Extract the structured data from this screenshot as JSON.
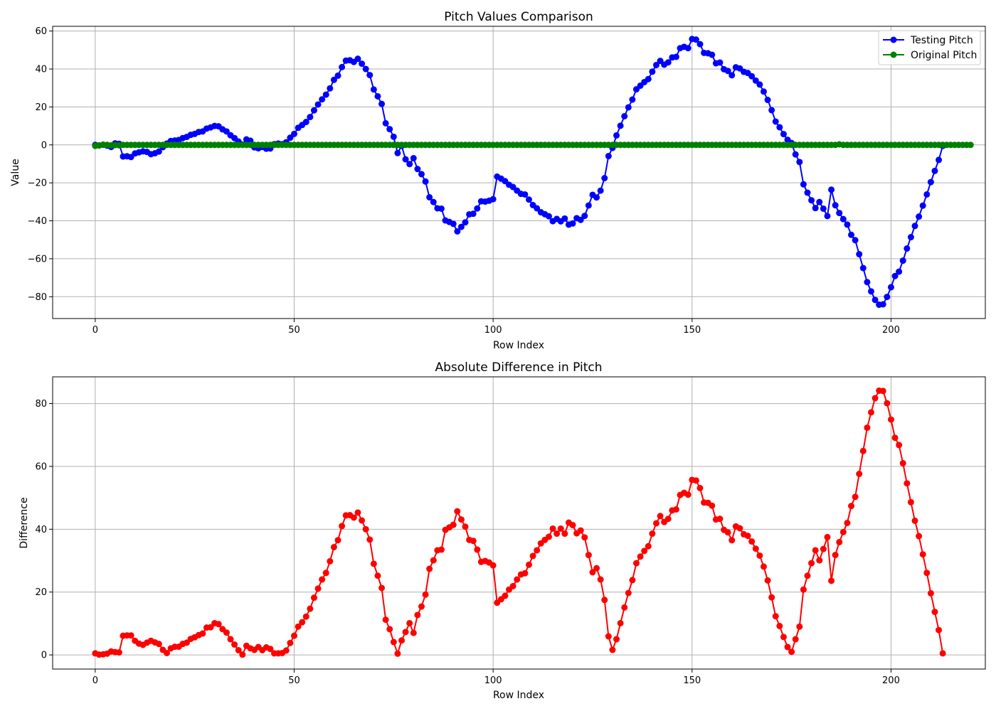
{
  "colors": {
    "testing": "#0000ff",
    "original": "#008000",
    "difference": "#ff0000",
    "grid": "#b0b0b0"
  },
  "chart_data": [
    {
      "type": "line",
      "title": "Pitch Values Comparison",
      "xlabel": "Row Index",
      "ylabel": "Value",
      "xlim": [
        -10.7,
        223.7
      ],
      "ylim": [
        -91.5,
        62.5
      ],
      "xticks": [
        0,
        50,
        100,
        150,
        200
      ],
      "yticks": [
        -80,
        -60,
        -40,
        -20,
        0,
        20,
        40,
        60
      ],
      "ytick_labels": [
        "−80",
        "−60",
        "−40",
        "−20",
        "0",
        "20",
        "40",
        "60"
      ],
      "grid": true,
      "legend": "top-right",
      "series": [
        {
          "name": "Testing Pitch",
          "color": "#0000ff",
          "marker": "circle",
          "values": [
            0.0,
            -0.3,
            0.1,
            -0.4,
            -1.1,
            0.8,
            0.6,
            -6.1,
            -6.0,
            -6.4,
            -4.5,
            -3.9,
            -3.4,
            -3.7,
            -4.9,
            -4.4,
            -3.5,
            -1.2,
            0.7,
            2.1,
            2.3,
            2.6,
            3.6,
            4.2,
            5.3,
            5.8,
            6.8,
            7.1,
            8.6,
            9.2,
            10.0,
            9.8,
            8.2,
            7.1,
            5.1,
            3.6,
            1.8,
            0.2,
            2.9,
            2.2,
            -1.3,
            -1.8,
            -1.1,
            -2.0,
            -1.9,
            0.4,
            0.7,
            0.4,
            1.4,
            3.8,
            5.8,
            9.0,
            10.5,
            12.1,
            14.7,
            18.2,
            21.3,
            24.0,
            26.5,
            29.8,
            34.3,
            36.5,
            41.0,
            44.4,
            44.6,
            43.7,
            45.4,
            42.8,
            40.0,
            36.8,
            29.2,
            25.6,
            21.6,
            11.4,
            8.3,
            4.3,
            -4.3,
            -0.5,
            -7.6,
            -10.1,
            -7.0,
            -12.7,
            -15.4,
            -19.3,
            -27.6,
            -30.1,
            -33.4,
            -33.6,
            -39.8,
            -40.6,
            -41.6,
            -45.6,
            -43.2,
            -40.8,
            -36.6,
            -36.3,
            -33.5,
            -29.7,
            -29.9,
            -29.4,
            -28.6,
            -16.7,
            -17.8,
            -19.1,
            -21.0,
            -22.2,
            -24.1,
            -25.8,
            -26.1,
            -28.8,
            -31.7,
            -33.4,
            -35.5,
            -36.5,
            -37.6,
            -40.2,
            -39.0,
            -40.3,
            -38.8,
            -42.0,
            -41.4,
            -38.6,
            -39.5,
            -37.4,
            -31.9,
            -26.3,
            -27.7,
            -24.1,
            -17.5,
            -5.9,
            -1.6,
            5.0,
            10.1,
            15.1,
            19.8,
            23.9,
            29.3,
            31.2,
            33.1,
            34.7,
            38.6,
            42.1,
            44.3,
            42.3,
            43.5,
            46.1,
            46.4,
            51.0,
            51.7,
            51.0,
            55.8,
            55.5,
            53.1,
            48.5,
            48.3,
            47.5,
            43.0,
            43.4,
            39.9,
            39.0,
            36.7,
            40.9,
            40.3,
            38.5,
            37.9,
            36.2,
            33.9,
            31.8,
            28.1,
            23.7,
            18.3,
            12.3,
            9.3,
            5.7,
            2.7,
            1.0,
            -5.0,
            -9.0,
            -20.8,
            -25.2,
            -29.2,
            -33.3,
            -30.1,
            -33.6,
            -37.5,
            -23.6,
            -31.8,
            -35.9,
            -39.1,
            -42.0,
            -47.4,
            -50.2,
            -57.6,
            -64.9,
            -72.3,
            -77.2,
            -81.7,
            -84.2,
            -84.0,
            -80.1,
            -75.0,
            -69.1,
            -66.8,
            -61.0,
            -54.6,
            -48.6,
            -42.7,
            -37.8,
            -32.0,
            -26.1,
            -19.6,
            -13.7,
            -7.9,
            -0.5
          ]
        },
        {
          "name": "Original Pitch",
          "color": "#008000",
          "marker": "circle",
          "values": [
            -0.5,
            -0.2,
            0.1,
            0.0,
            -0.2,
            -0.1,
            -0.2,
            0.0,
            0.0,
            0.0,
            0.0,
            0.0,
            0.0,
            0.0,
            0.0,
            0.0,
            0.0,
            0.0,
            0.0,
            0.0,
            0.0,
            0.0,
            0.0,
            0.0,
            0.0,
            0.0,
            0.0,
            0.0,
            0.0,
            0.0,
            0.0,
            0.0,
            0.0,
            0.0,
            0.0,
            0.0,
            0.0,
            0.0,
            0.0,
            0.0,
            0.0,
            0.0,
            0.0,
            0.0,
            0.0,
            0.0,
            0.0,
            0.0,
            0.0,
            0.0,
            0.0,
            0.0,
            0.0,
            0.0,
            0.0,
            0.0,
            0.0,
            0.0,
            0.0,
            0.0,
            0.0,
            0.0,
            0.0,
            0.0,
            0.0,
            0.0,
            0.0,
            0.0,
            0.0,
            0.0,
            0.0,
            0.0,
            0.0,
            0.0,
            0.0,
            0.0,
            0.0,
            0.0,
            0.0,
            0.0,
            0.0,
            0.0,
            0.0,
            0.0,
            0.0,
            0.0,
            0.0,
            0.0,
            0.0,
            0.0,
            0.0,
            0.0,
            0.0,
            0.0,
            0.0,
            0.0,
            0.0,
            0.0,
            0.0,
            0.0,
            0.0,
            0.0,
            0.0,
            0.0,
            0.0,
            0.0,
            0.0,
            0.0,
            0.0,
            0.0,
            0.0,
            0.0,
            0.0,
            0.0,
            0.0,
            0.0,
            0.0,
            0.0,
            0.0,
            0.0,
            0.0,
            0.0,
            0.0,
            0.0,
            0.0,
            0.0,
            0.0,
            0.0,
            0.0,
            0.0,
            0.0,
            0.0,
            0.0,
            0.0,
            0.0,
            0.0,
            0.0,
            0.0,
            0.0,
            0.0,
            0.0,
            0.0,
            0.0,
            0.0,
            0.0,
            0.0,
            0.0,
            0.0,
            0.0,
            0.0,
            0.0,
            0.0,
            0.0,
            0.0,
            0.0,
            0.0,
            0.0,
            0.0,
            0.0,
            0.0,
            0.0,
            0.0,
            0.0,
            0.0,
            0.0,
            0.0,
            0.0,
            0.0,
            0.0,
            0.0,
            0.0,
            0.0,
            0.0,
            0.0,
            0.0,
            0.0,
            0.0,
            0.0,
            0.0,
            0.0,
            0.0,
            0.0,
            0.0,
            0.0,
            0.0,
            0.0,
            0.0,
            0.3,
            0.0,
            0.0,
            0.0,
            0.0,
            0.0,
            0.0,
            0.0,
            0.0,
            0.0,
            0.0,
            0.0,
            0.0,
            0.0,
            0.0,
            0.0,
            0.0,
            0.0,
            0.0,
            0.0,
            0.0,
            0.0,
            0.0,
            0.0,
            0.0,
            0.0,
            0.0,
            0.0,
            0.0,
            0.0,
            0.0,
            0.0,
            0.0,
            0.0
          ]
        }
      ]
    },
    {
      "type": "line",
      "title": "Absolute Difference in Pitch",
      "xlabel": "Row Index",
      "ylabel": "Difference",
      "xlim": [
        -10.7,
        223.7
      ],
      "ylim": [
        -4.5,
        88.5
      ],
      "xticks": [
        0,
        50,
        100,
        150,
        200
      ],
      "yticks": [
        0,
        20,
        40,
        60,
        80
      ],
      "ytick_labels": [
        "0",
        "20",
        "40",
        "60",
        "80"
      ],
      "grid": true,
      "series": [
        {
          "color": "#ff0000",
          "marker": "circle",
          "values": [
            0.5,
            0.1,
            0.2,
            0.4,
            1.1,
            0.9,
            0.8,
            6.1,
            6.2,
            6.2,
            4.5,
            3.6,
            3.2,
            3.9,
            4.5,
            4.0,
            3.5,
            1.6,
            0.6,
            2.1,
            2.6,
            2.6,
            3.5,
            3.9,
            5.1,
            5.6,
            6.3,
            6.8,
            8.7,
            8.8,
            10.1,
            9.8,
            8.2,
            7.1,
            5.0,
            3.3,
            1.5,
            0.1,
            2.9,
            2.1,
            1.6,
            2.5,
            1.5,
            2.4,
            1.9,
            0.5,
            0.5,
            0.6,
            1.4,
            3.8,
            6.1,
            9.0,
            10.4,
            12.2,
            14.7,
            18.2,
            21.1,
            24.0,
            26.1,
            29.8,
            34.3,
            36.5,
            41.0,
            44.4,
            44.5,
            43.7,
            45.3,
            42.8,
            40.0,
            36.7,
            29.0,
            25.2,
            21.3,
            11.2,
            8.2,
            4.1,
            0.4,
            4.6,
            7.3,
            10.1,
            7.0,
            12.7,
            15.4,
            19.2,
            27.4,
            30.1,
            33.3,
            33.5,
            39.8,
            40.6,
            41.4,
            45.7,
            43.1,
            40.8,
            36.6,
            36.3,
            33.5,
            29.6,
            29.9,
            29.4,
            28.5,
            16.6,
            17.7,
            18.8,
            20.8,
            21.9,
            24.0,
            25.6,
            26.0,
            28.7,
            31.5,
            33.3,
            35.5,
            36.6,
            37.6,
            40.2,
            38.6,
            40.2,
            38.6,
            42.1,
            41.3,
            38.7,
            39.6,
            37.4,
            31.8,
            26.3,
            27.6,
            24.0,
            17.5,
            5.9,
            1.6,
            5.0,
            10.1,
            15.1,
            19.7,
            23.8,
            29.2,
            31.3,
            33.1,
            34.6,
            38.6,
            41.9,
            44.2,
            42.3,
            43.3,
            46.0,
            46.3,
            50.9,
            51.6,
            51.0,
            55.7,
            55.5,
            53.1,
            48.5,
            48.4,
            47.5,
            43.1,
            43.3,
            39.8,
            39.0,
            36.5,
            40.9,
            40.3,
            38.4,
            37.9,
            36.1,
            33.8,
            31.6,
            28.1,
            23.7,
            18.3,
            12.3,
            9.2,
            5.7,
            2.5,
            1.0,
            5.0,
            9.0,
            20.8,
            25.2,
            29.2,
            33.3,
            30.1,
            33.7,
            37.5,
            23.6,
            31.8,
            35.9,
            39.1,
            42.0,
            47.4,
            50.3,
            57.6,
            64.9,
            72.3,
            77.2,
            81.7,
            84.1,
            84.0,
            80.1,
            74.9,
            69.1,
            66.8,
            61.0,
            54.6,
            48.6,
            42.7,
            37.8,
            32.0,
            26.1,
            19.6,
            13.7,
            7.9,
            0.5
          ]
        }
      ]
    }
  ]
}
